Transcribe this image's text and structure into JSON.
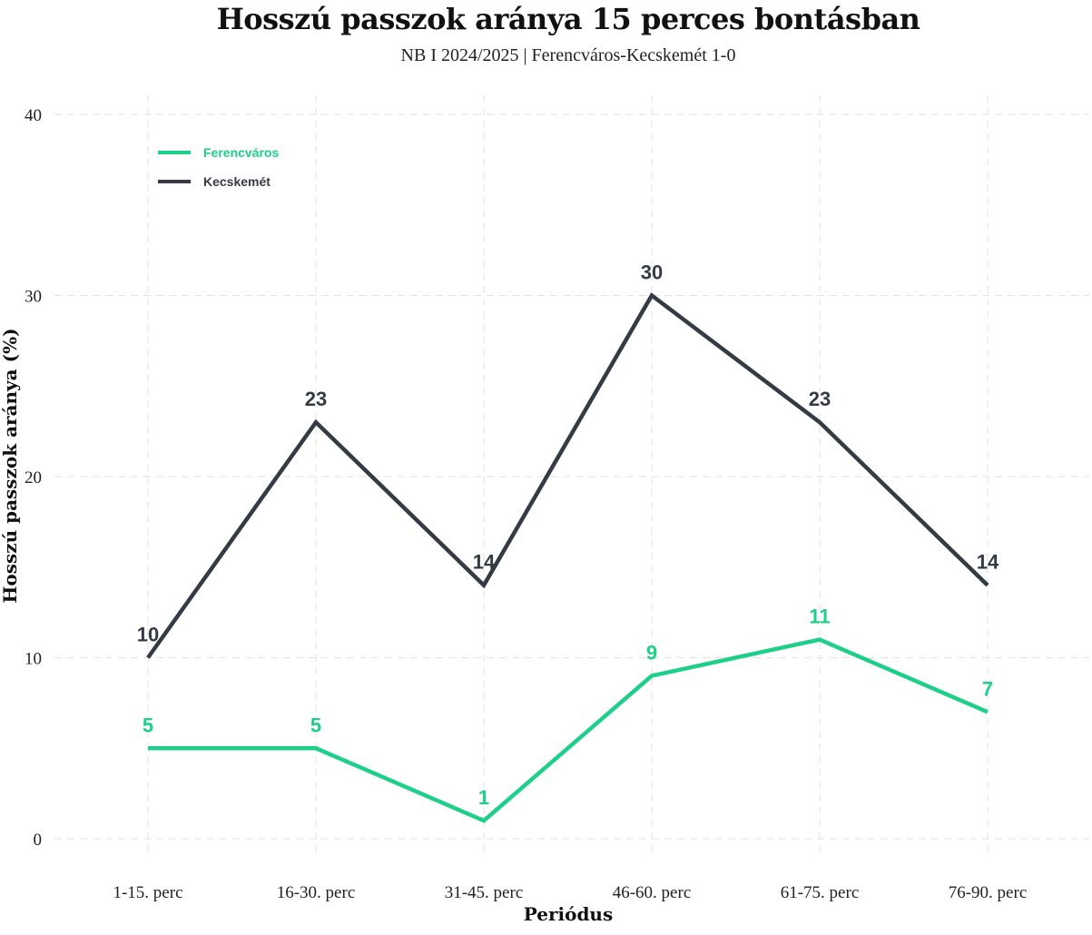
{
  "chart_data": {
    "type": "line",
    "title": "Hosszú passzok aránya 15 perces bontásban",
    "subtitle": "NB I 2024/2025 | Ferencváros-Kecskemét 1-0",
    "xlabel": "Periódus",
    "ylabel": "Hosszú passzok aránya (%)",
    "categories": [
      "1-15. perc",
      "16-30. perc",
      "31-45. perc",
      "46-60. perc",
      "61-75. perc",
      "76-90. perc"
    ],
    "ylim": [
      0,
      40
    ],
    "yticks": [
      0,
      10,
      20,
      30,
      40
    ],
    "grid": true,
    "legend_position": "top-left",
    "series": [
      {
        "name": "Ferencváros",
        "color": "#1ecf8a",
        "values": [
          5,
          5,
          1,
          9,
          11,
          7
        ]
      },
      {
        "name": "Kecskemét",
        "color": "#343b45",
        "values": [
          10,
          23,
          14,
          30,
          23,
          14
        ]
      }
    ]
  }
}
